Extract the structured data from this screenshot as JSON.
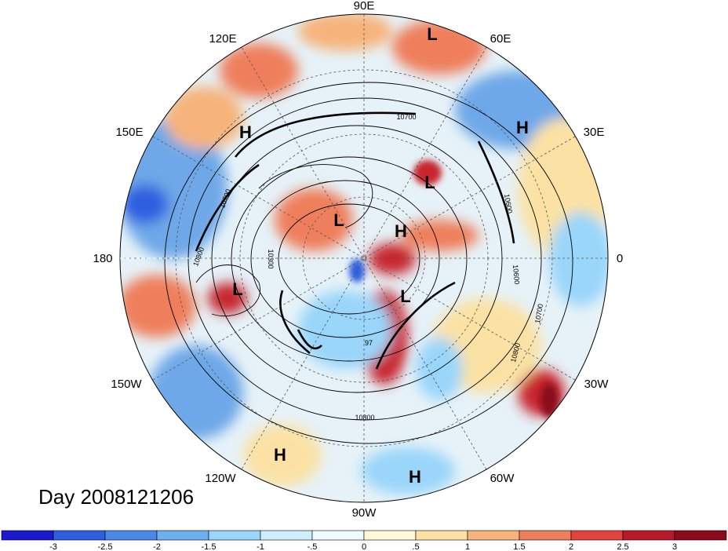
{
  "title": "Day 2008121206",
  "longitude_labels": [
    "90E",
    "60E",
    "30E",
    "0",
    "30W",
    "60W",
    "90W",
    "120W",
    "150W",
    "180",
    "150E",
    "120E"
  ],
  "pressure_centers": [
    {
      "type": "L"
    },
    {
      "type": "H"
    },
    {
      "type": "H"
    },
    {
      "type": "L"
    },
    {
      "type": "L"
    },
    {
      "type": "H"
    },
    {
      "type": "L"
    },
    {
      "type": "L"
    },
    {
      "type": "H"
    },
    {
      "type": "H"
    }
  ],
  "contour_labels": [
    "10700",
    "10600",
    "10300",
    "10800",
    "10700",
    "10600",
    "10800",
    "10700",
    "10800",
    "97"
  ],
  "colorbar": {
    "labels": [
      "-3",
      "-2.5",
      "-2",
      "-1.5",
      "-1",
      "-.5",
      "0",
      ".5",
      "1",
      "1.5",
      "2",
      "2.5",
      "3"
    ],
    "colors": [
      "#1a1acc",
      "#2e5fe0",
      "#4a88ea",
      "#6cb0f2",
      "#9ad6fa",
      "#cdeefc",
      "#eefaff",
      "#fff8d9",
      "#fbe2a4",
      "#f6b47c",
      "#ef7f5c",
      "#e0443c",
      "#b6192a",
      "#8c0a1c"
    ]
  },
  "field_colors": {
    "ocean_blue": "#6ea8e8",
    "pale": "#eaf4f8",
    "warm": "#f2a37a",
    "hot": "#c8262e"
  }
}
